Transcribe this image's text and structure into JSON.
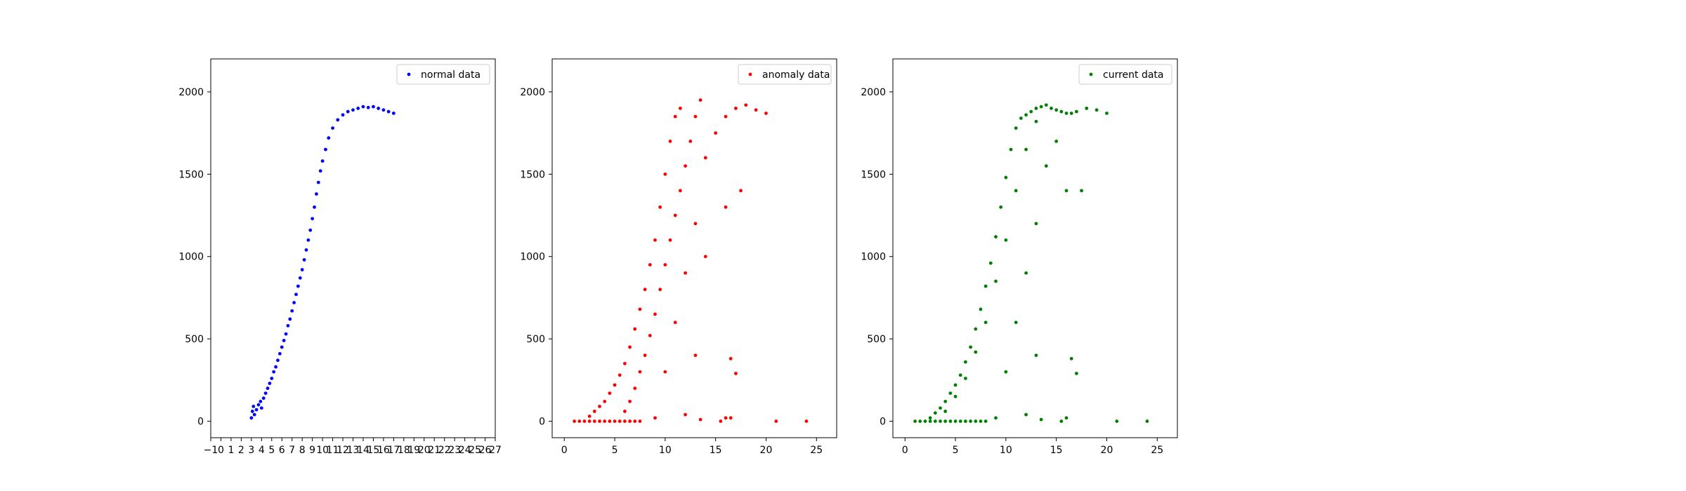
{
  "chart_data": [
    {
      "type": "scatter",
      "series": [
        {
          "name": "normal data",
          "color": "#0000ff"
        }
      ],
      "xlim": [
        -1,
        27
      ],
      "ylim": [
        -100,
        2200
      ],
      "xticks": [
        -1,
        0,
        1,
        2,
        3,
        4,
        5,
        6,
        7,
        8,
        9,
        10,
        11,
        12,
        13,
        14,
        15,
        16,
        17,
        18,
        19,
        20,
        21,
        22,
        23,
        24,
        25,
        26,
        27
      ],
      "xtick_labels": [
        "−1",
        "0",
        "1",
        "2",
        "3",
        "4",
        "5",
        "6",
        "7",
        "8",
        "9",
        "10",
        "11",
        "12",
        "13",
        "14",
        "15",
        "16",
        "17",
        "18",
        "19",
        "20",
        "21",
        "22",
        "23",
        "24",
        "25",
        "26",
        "27"
      ],
      "yticks": [
        0,
        500,
        1000,
        1500,
        2000
      ],
      "ytick_labels": [
        "0",
        "500",
        "1000",
        "1500",
        "2000"
      ],
      "legend_position": "top-right",
      "grid": false,
      "points": [
        [
          3.0,
          20
        ],
        [
          3.1,
          60
        ],
        [
          3.2,
          90
        ],
        [
          3.3,
          40
        ],
        [
          3.5,
          70
        ],
        [
          3.7,
          100
        ],
        [
          3.9,
          120
        ],
        [
          4.0,
          80
        ],
        [
          4.2,
          140
        ],
        [
          4.4,
          170
        ],
        [
          4.6,
          200
        ],
        [
          4.8,
          230
        ],
        [
          5.0,
          260
        ],
        [
          5.2,
          300
        ],
        [
          5.4,
          330
        ],
        [
          5.6,
          370
        ],
        [
          5.8,
          410
        ],
        [
          6.0,
          450
        ],
        [
          6.2,
          490
        ],
        [
          6.4,
          530
        ],
        [
          6.6,
          580
        ],
        [
          6.8,
          620
        ],
        [
          7.0,
          670
        ],
        [
          7.2,
          720
        ],
        [
          7.4,
          770
        ],
        [
          7.6,
          820
        ],
        [
          7.8,
          870
        ],
        [
          8.0,
          920
        ],
        [
          8.2,
          980
        ],
        [
          8.4,
          1040
        ],
        [
          8.6,
          1100
        ],
        [
          8.8,
          1160
        ],
        [
          9.0,
          1230
        ],
        [
          9.2,
          1300
        ],
        [
          9.4,
          1380
        ],
        [
          9.6,
          1450
        ],
        [
          9.8,
          1520
        ],
        [
          10.0,
          1580
        ],
        [
          10.3,
          1650
        ],
        [
          10.6,
          1720
        ],
        [
          11.0,
          1780
        ],
        [
          11.5,
          1830
        ],
        [
          12.0,
          1860
        ],
        [
          12.5,
          1880
        ],
        [
          13.0,
          1890
        ],
        [
          13.5,
          1900
        ],
        [
          14.0,
          1910
        ],
        [
          14.5,
          1905
        ],
        [
          15.0,
          1910
        ],
        [
          15.5,
          1900
        ],
        [
          16.0,
          1890
        ],
        [
          16.5,
          1880
        ],
        [
          17.0,
          1870
        ]
      ]
    },
    {
      "type": "scatter",
      "series": [
        {
          "name": "anomaly data",
          "color": "#ff0000"
        }
      ],
      "xlim": [
        -1.2,
        27.0
      ],
      "ylim": [
        -100,
        2200
      ],
      "xticks": [
        0,
        5,
        10,
        15,
        20,
        25
      ],
      "xtick_labels": [
        "0",
        "5",
        "10",
        "15",
        "20",
        "25"
      ],
      "yticks": [
        0,
        500,
        1000,
        1500,
        2000
      ],
      "ytick_labels": [
        "0",
        "500",
        "1000",
        "1500",
        "2000"
      ],
      "legend_position": "top-right",
      "grid": false,
      "points": [
        [
          1.0,
          0
        ],
        [
          1.5,
          0
        ],
        [
          2.0,
          0
        ],
        [
          2.5,
          0
        ],
        [
          3.0,
          0
        ],
        [
          3.5,
          0
        ],
        [
          4.0,
          0
        ],
        [
          4.5,
          0
        ],
        [
          5.0,
          0
        ],
        [
          5.5,
          0
        ],
        [
          6.0,
          0
        ],
        [
          6.5,
          0
        ],
        [
          7.0,
          0
        ],
        [
          7.5,
          0
        ],
        [
          2.5,
          30
        ],
        [
          3.0,
          60
        ],
        [
          3.5,
          90
        ],
        [
          4.0,
          120
        ],
        [
          4.5,
          170
        ],
        [
          5.0,
          220
        ],
        [
          5.5,
          280
        ],
        [
          6.0,
          350
        ],
        [
          6.5,
          450
        ],
        [
          7.0,
          560
        ],
        [
          7.5,
          680
        ],
        [
          8.0,
          800
        ],
        [
          8.5,
          950
        ],
        [
          9.0,
          1100
        ],
        [
          9.5,
          1300
        ],
        [
          10.0,
          1500
        ],
        [
          10.5,
          1700
        ],
        [
          11.0,
          1850
        ],
        [
          11.5,
          1900
        ],
        [
          6.0,
          60
        ],
        [
          6.5,
          120
        ],
        [
          7.0,
          200
        ],
        [
          7.5,
          300
        ],
        [
          8.0,
          400
        ],
        [
          8.5,
          520
        ],
        [
          9.0,
          650
        ],
        [
          9.5,
          800
        ],
        [
          10.0,
          950
        ],
        [
          10.5,
          1100
        ],
        [
          11.0,
          1250
        ],
        [
          11.5,
          1400
        ],
        [
          12.0,
          1550
        ],
        [
          12.5,
          1700
        ],
        [
          13.0,
          1850
        ],
        [
          13.5,
          1950
        ],
        [
          10.0,
          300
        ],
        [
          11.0,
          600
        ],
        [
          12.0,
          900
        ],
        [
          13.0,
          1200
        ],
        [
          14.0,
          1600
        ],
        [
          15.0,
          1750
        ],
        [
          16.0,
          1850
        ],
        [
          17.0,
          1900
        ],
        [
          18.0,
          1920
        ],
        [
          19.0,
          1890
        ],
        [
          20.0,
          1870
        ],
        [
          14.0,
          1000
        ],
        [
          16.0,
          1300
        ],
        [
          17.5,
          1400
        ],
        [
          13.0,
          400
        ],
        [
          16.5,
          380
        ],
        [
          17.0,
          290
        ],
        [
          9.0,
          20
        ],
        [
          12.0,
          40
        ],
        [
          16.0,
          20
        ],
        [
          21.0,
          0
        ],
        [
          24.0,
          0
        ],
        [
          15.5,
          0
        ],
        [
          16.5,
          20
        ],
        [
          13.5,
          10
        ]
      ]
    },
    {
      "type": "scatter",
      "series": [
        {
          "name": "current data",
          "color": "#008000"
        }
      ],
      "xlim": [
        -1.2,
        27.0
      ],
      "ylim": [
        -100,
        2200
      ],
      "xticks": [
        0,
        5,
        10,
        15,
        20,
        25
      ],
      "xtick_labels": [
        "0",
        "5",
        "10",
        "15",
        "20",
        "25"
      ],
      "yticks": [
        0,
        500,
        1000,
        1500,
        2000
      ],
      "ytick_labels": [
        "0",
        "500",
        "1000",
        "1500",
        "2000"
      ],
      "legend_position": "top-right",
      "grid": false,
      "points": [
        [
          1.0,
          0
        ],
        [
          1.5,
          0
        ],
        [
          2.0,
          0
        ],
        [
          2.5,
          0
        ],
        [
          3.0,
          0
        ],
        [
          3.5,
          0
        ],
        [
          4.0,
          0
        ],
        [
          4.5,
          0
        ],
        [
          5.0,
          0
        ],
        [
          5.5,
          0
        ],
        [
          6.0,
          0
        ],
        [
          6.5,
          0
        ],
        [
          7.0,
          0
        ],
        [
          7.5,
          0
        ],
        [
          8.0,
          0
        ],
        [
          2.5,
          20
        ],
        [
          3.0,
          50
        ],
        [
          3.5,
          80
        ],
        [
          4.0,
          120
        ],
        [
          4.5,
          170
        ],
        [
          5.0,
          220
        ],
        [
          5.5,
          280
        ],
        [
          6.0,
          360
        ],
        [
          6.5,
          450
        ],
        [
          7.0,
          560
        ],
        [
          7.5,
          680
        ],
        [
          8.0,
          820
        ],
        [
          8.5,
          960
        ],
        [
          9.0,
          1120
        ],
        [
          9.5,
          1300
        ],
        [
          10.0,
          1480
        ],
        [
          10.5,
          1650
        ],
        [
          11.0,
          1780
        ],
        [
          11.5,
          1840
        ],
        [
          12.0,
          1860
        ],
        [
          12.5,
          1880
        ],
        [
          13.0,
          1900
        ],
        [
          13.5,
          1910
        ],
        [
          14.0,
          1920
        ],
        [
          14.5,
          1900
        ],
        [
          15.0,
          1890
        ],
        [
          15.5,
          1880
        ],
        [
          16.0,
          1870
        ],
        [
          16.5,
          1870
        ],
        [
          17.0,
          1880
        ],
        [
          18.0,
          1900
        ],
        [
          19.0,
          1890
        ],
        [
          20.0,
          1870
        ],
        [
          4.0,
          60
        ],
        [
          5.0,
          150
        ],
        [
          6.0,
          260
        ],
        [
          7.0,
          420
        ],
        [
          8.0,
          600
        ],
        [
          9.0,
          850
        ],
        [
          10.0,
          1100
        ],
        [
          11.0,
          1400
        ],
        [
          12.0,
          1650
        ],
        [
          13.0,
          1820
        ],
        [
          10.0,
          300
        ],
        [
          11.0,
          600
        ],
        [
          12.0,
          900
        ],
        [
          13.0,
          1200
        ],
        [
          14.0,
          1550
        ],
        [
          15.0,
          1700
        ],
        [
          16.0,
          1400
        ],
        [
          17.5,
          1400
        ],
        [
          13.0,
          400
        ],
        [
          16.5,
          380
        ],
        [
          17.0,
          290
        ],
        [
          9.0,
          20
        ],
        [
          12.0,
          40
        ],
        [
          16.0,
          20
        ],
        [
          21.0,
          0
        ],
        [
          24.0,
          0
        ],
        [
          15.5,
          0
        ],
        [
          13.5,
          10
        ]
      ]
    }
  ]
}
